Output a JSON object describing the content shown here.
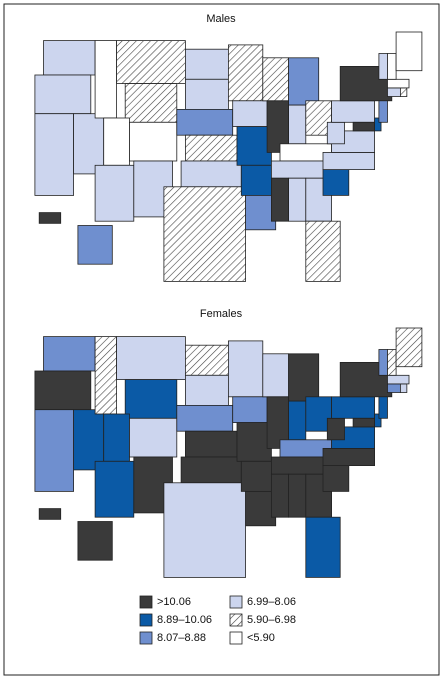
{
  "maps": [
    {
      "title": "Males"
    },
    {
      "title": "Females"
    }
  ],
  "legend": [
    {
      "label": ">10.06"
    },
    {
      "label": "8.89–10.06"
    },
    {
      "label": "8.07–8.88"
    },
    {
      "label": "6.99–8.06"
    },
    {
      "label": "5.90–6.98"
    },
    {
      "label": "<5.90"
    }
  ]
}
